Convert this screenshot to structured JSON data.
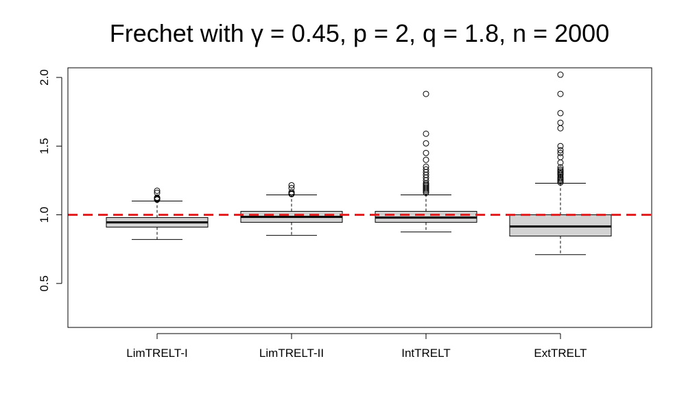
{
  "chart_data": {
    "type": "box",
    "title": "Frechet with γ = 0.45, p = 2, q = 1.8, n = 2000",
    "xlabel": "",
    "ylabel": "",
    "ylim": [
      0.18,
      2.07
    ],
    "yticks": [
      "0.5",
      "1.0",
      "1.5",
      "2.0"
    ],
    "ytick_values": [
      0.5,
      1.0,
      1.5,
      2.0
    ],
    "reference_line": {
      "y": 1.0,
      "color": "#e31a1c",
      "style": "dashed"
    },
    "box_fill": "#d3d3d3",
    "categories": [
      "LimTRELT-I",
      "LimTRELT-II",
      "IntTRELT",
      "ExtTRELT"
    ],
    "boxes": [
      {
        "name": "LimTRELT-I",
        "whisker_low": 0.82,
        "q1": 0.91,
        "median": 0.945,
        "q3": 0.98,
        "whisker_high": 1.1,
        "outliers": [
          1.11,
          1.115,
          1.12,
          1.125,
          1.16,
          1.175
        ]
      },
      {
        "name": "LimTRELT-II",
        "whisker_low": 0.85,
        "q1": 0.945,
        "median": 0.985,
        "q3": 1.025,
        "whisker_high": 1.145,
        "outliers": [
          1.15,
          1.155,
          1.165,
          1.195,
          1.215
        ]
      },
      {
        "name": "IntTRELT",
        "whisker_low": 0.875,
        "q1": 0.945,
        "median": 0.98,
        "q3": 1.025,
        "whisker_high": 1.145,
        "outliers": [
          1.16,
          1.17,
          1.18,
          1.19,
          1.2,
          1.21,
          1.22,
          1.23,
          1.25,
          1.27,
          1.29,
          1.31,
          1.33,
          1.35,
          1.4,
          1.45,
          1.52,
          1.59,
          1.88
        ]
      },
      {
        "name": "ExtTRELT",
        "whisker_low": 0.71,
        "q1": 0.845,
        "median": 0.915,
        "q3": 1.0,
        "whisker_high": 1.23,
        "outliers": [
          1.235,
          1.245,
          1.255,
          1.265,
          1.275,
          1.29,
          1.3,
          1.31,
          1.32,
          1.33,
          1.345,
          1.38,
          1.42,
          1.45,
          1.47,
          1.5,
          1.63,
          1.67,
          1.74,
          1.88,
          2.02
        ]
      }
    ]
  }
}
